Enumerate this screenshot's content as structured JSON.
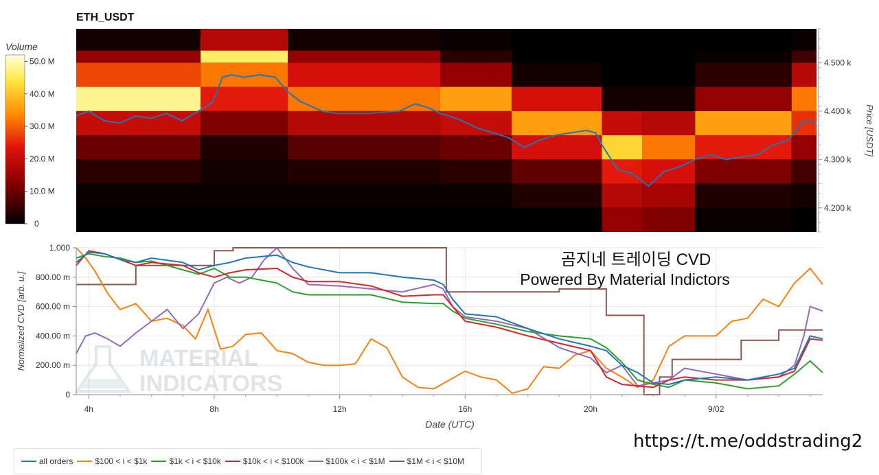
{
  "link_text": "https://t.me/oddstrading2",
  "colors": {
    "all_orders": "#1f77b4",
    "b100_1k": "#ff7f0e",
    "b1k_10k": "#2ca02c",
    "b10k_100k": "#d62728",
    "b100k_1m": "#9467bd",
    "b1m_10m": "#8c564b"
  },
  "chart_data": [
    {
      "type": "heatmap",
      "title": "ETH_USDT",
      "ylabel": "Price [USDT]",
      "colorbar_label": "Volume",
      "colorbar_ticks": [
        "0",
        "10.0 M",
        "20.0 M",
        "30.0 M",
        "40.0 M",
        "50.0 M"
      ],
      "colorbar_range": [
        0,
        52
      ],
      "y_ticks": [
        "4.200 k",
        "4.300 k",
        "4.400 k",
        "4.500 k"
      ],
      "y_tick_values": [
        4200,
        4300,
        4400,
        4500
      ],
      "ylim": [
        4150,
        4570
      ],
      "x_range_hours": [
        3.6,
        27.4
      ],
      "price_bins": [
        4175,
        4225,
        4275,
        4325,
        4375,
        4425,
        4475,
        4525,
        4550
      ],
      "volume_profile": [
        {
          "x_start": 3.6,
          "x_end": 7.6,
          "volumes": [
            0,
            1,
            4,
            10,
            20,
            48,
            28,
            14,
            2
          ]
        },
        {
          "x_start": 7.6,
          "x_end": 10.4,
          "volumes": [
            0,
            1,
            2,
            3,
            12,
            24,
            32,
            46,
            18
          ]
        },
        {
          "x_start": 10.4,
          "x_end": 15.3,
          "volumes": [
            0,
            1,
            3,
            8,
            18,
            32,
            22,
            14,
            2
          ]
        },
        {
          "x_start": 15.3,
          "x_end": 17.6,
          "volumes": [
            0,
            1,
            4,
            10,
            20,
            36,
            14,
            4,
            1
          ]
        },
        {
          "x_start": 17.6,
          "x_end": 20.5,
          "volumes": [
            0,
            3,
            9,
            22,
            36,
            22,
            2,
            0,
            0
          ]
        },
        {
          "x_start": 20.5,
          "x_end": 21.8,
          "volumes": [
            14,
            18,
            24,
            42,
            20,
            2,
            0,
            0,
            0
          ]
        },
        {
          "x_start": 21.8,
          "x_end": 23.5,
          "volumes": [
            12,
            16,
            22,
            32,
            18,
            2,
            0,
            0,
            0
          ]
        },
        {
          "x_start": 23.5,
          "x_end": 26.6,
          "volumes": [
            1,
            3,
            12,
            24,
            36,
            14,
            4,
            1,
            0
          ]
        },
        {
          "x_start": 26.6,
          "x_end": 27.4,
          "volumes": [
            0,
            2,
            6,
            14,
            26,
            32,
            18,
            6,
            1
          ]
        }
      ],
      "price_series": {
        "name": "price",
        "x": [
          3.6,
          4.0,
          4.5,
          5.0,
          5.5,
          6.0,
          6.5,
          7.0,
          7.4,
          7.8,
          8.0,
          8.3,
          8.6,
          9.0,
          9.5,
          10.0,
          10.4,
          10.8,
          11.5,
          12.0,
          13.0,
          14.0,
          14.5,
          15.0,
          15.3,
          15.6,
          16.0,
          16.5,
          17.0,
          17.5,
          18.0,
          18.5,
          19.0,
          19.5,
          20.0,
          20.3,
          20.5,
          21.0,
          21.5,
          22.0,
          22.5,
          23.0,
          23.5,
          24.0,
          24.5,
          25.0,
          25.5,
          26.0,
          26.5,
          27.0,
          27.4
        ],
        "y": [
          4390,
          4400,
          4380,
          4375,
          4390,
          4385,
          4395,
          4380,
          4395,
          4410,
          4420,
          4470,
          4475,
          4470,
          4475,
          4470,
          4440,
          4420,
          4400,
          4395,
          4395,
          4400,
          4415,
          4405,
          4395,
          4390,
          4380,
          4365,
          4355,
          4345,
          4325,
          4340,
          4350,
          4355,
          4360,
          4355,
          4330,
          4280,
          4270,
          4245,
          4275,
          4285,
          4300,
          4310,
          4300,
          4305,
          4310,
          4330,
          4340,
          4380,
          4375
        ]
      }
    },
    {
      "type": "line",
      "title": "곰지네 트레이딩 CVD",
      "subtitle": "Powered By Material Indictors",
      "xlabel": "Date (UTC)",
      "ylabel": "Normalized CVD [arb. u.]",
      "xlim": [
        3.6,
        27.4
      ],
      "ylim": [
        0,
        1
      ],
      "x_ticks": [
        "4h",
        "8h",
        "12h",
        "16h",
        "20h",
        "9/02"
      ],
      "x_tick_values": [
        4,
        8,
        12,
        16,
        20,
        24
      ],
      "y_ticks": [
        "0",
        "200.00 m",
        "400.00 m",
        "600.00 m",
        "800.00 m",
        "1.000"
      ],
      "y_tick_values": [
        0,
        0.2,
        0.4,
        0.6,
        0.8,
        1.0
      ],
      "grid": true,
      "legend_position": "bottom",
      "watermark_lines": [
        "MATERIAL",
        "INDICATORS"
      ],
      "series": [
        {
          "name": "all orders",
          "color_key": "all_orders",
          "step": false,
          "x": [
            3.6,
            4.0,
            4.5,
            5.0,
            5.5,
            6.0,
            7.0,
            7.5,
            8.0,
            8.5,
            9.0,
            10.0,
            10.5,
            11.0,
            12.0,
            13.0,
            14.0,
            15.0,
            15.3,
            15.6,
            16.0,
            16.5,
            17.0,
            18.0,
            19.0,
            20.0,
            20.5,
            21.0,
            21.5,
            22.0,
            22.5,
            23.0,
            24.0,
            25.0,
            26.0,
            26.5,
            27.0,
            27.4
          ],
          "y": [
            0.9,
            0.97,
            0.96,
            0.92,
            0.9,
            0.93,
            0.9,
            0.85,
            0.88,
            0.9,
            0.93,
            0.95,
            0.9,
            0.87,
            0.83,
            0.83,
            0.8,
            0.78,
            0.75,
            0.65,
            0.55,
            0.54,
            0.53,
            0.45,
            0.38,
            0.33,
            0.3,
            0.2,
            0.15,
            0.08,
            0.07,
            0.1,
            0.12,
            0.1,
            0.14,
            0.18,
            0.4,
            0.38
          ]
        },
        {
          "name": "$100 < i < $1k",
          "color_key": "b100_1k",
          "step": false,
          "x": [
            3.6,
            3.9,
            4.2,
            4.6,
            5.0,
            5.5,
            6.0,
            6.5,
            7.0,
            7.4,
            7.8,
            8.2,
            8.6,
            9.0,
            9.5,
            10.0,
            10.5,
            11.0,
            11.5,
            12.0,
            12.5,
            13.0,
            13.5,
            14.0,
            14.5,
            15.0,
            15.5,
            16.0,
            16.5,
            17.0,
            17.5,
            18.0,
            18.5,
            19.0,
            19.5,
            20.0,
            20.5,
            21.0,
            21.5,
            22.0,
            22.5,
            23.0,
            23.5,
            24.0,
            24.5,
            25.0,
            25.5,
            26.0,
            26.5,
            27.0,
            27.4
          ],
          "y": [
            1.0,
            0.93,
            0.84,
            0.69,
            0.58,
            0.62,
            0.5,
            0.52,
            0.47,
            0.38,
            0.58,
            0.31,
            0.33,
            0.41,
            0.42,
            0.3,
            0.28,
            0.22,
            0.2,
            0.2,
            0.21,
            0.38,
            0.32,
            0.12,
            0.05,
            0.04,
            0.1,
            0.16,
            0.12,
            0.1,
            0.01,
            0.04,
            0.19,
            0.18,
            0.27,
            0.3,
            0.18,
            0.12,
            0.05,
            0.1,
            0.33,
            0.4,
            0.4,
            0.4,
            0.5,
            0.52,
            0.65,
            0.6,
            0.76,
            0.86,
            0.75
          ]
        },
        {
          "name": "$1k < i < $10k",
          "color_key": "b1k_10k",
          "step": false,
          "x": [
            3.6,
            4.0,
            4.5,
            5.0,
            5.5,
            6.0,
            7.0,
            7.5,
            8.0,
            8.5,
            9.0,
            10.0,
            10.5,
            11.0,
            12.0,
            13.0,
            14.0,
            15.0,
            15.3,
            15.6,
            16.0,
            17.0,
            18.0,
            19.0,
            20.0,
            20.5,
            21.0,
            21.5,
            22.0,
            22.5,
            23.0,
            24.0,
            25.0,
            26.0,
            26.5,
            27.0,
            27.4
          ],
          "y": [
            0.93,
            0.96,
            0.94,
            0.93,
            0.9,
            0.91,
            0.85,
            0.82,
            0.86,
            0.8,
            0.8,
            0.76,
            0.7,
            0.68,
            0.68,
            0.68,
            0.63,
            0.62,
            0.62,
            0.57,
            0.52,
            0.48,
            0.43,
            0.4,
            0.38,
            0.32,
            0.22,
            0.1,
            0.07,
            0.05,
            0.1,
            0.08,
            0.04,
            0.06,
            0.14,
            0.23,
            0.15
          ]
        },
        {
          "name": "$10k < i < $100k",
          "color_key": "b10k_100k",
          "step": false,
          "x": [
            3.6,
            4.0,
            4.5,
            5.0,
            5.5,
            6.0,
            7.0,
            7.5,
            8.0,
            8.5,
            9.0,
            10.0,
            10.5,
            11.0,
            12.0,
            13.0,
            14.0,
            15.0,
            15.3,
            15.6,
            16.0,
            17.0,
            18.0,
            19.0,
            20.0,
            20.5,
            21.0,
            21.5,
            22.0,
            22.5,
            23.0,
            24.0,
            25.0,
            26.0,
            26.5,
            27.0,
            27.4
          ],
          "y": [
            0.88,
            0.98,
            0.96,
            0.92,
            0.88,
            0.9,
            0.88,
            0.83,
            0.8,
            0.83,
            0.85,
            0.86,
            0.8,
            0.77,
            0.77,
            0.74,
            0.67,
            0.68,
            0.68,
            0.6,
            0.5,
            0.46,
            0.4,
            0.35,
            0.3,
            0.12,
            0.07,
            0.06,
            0.05,
            0.1,
            0.12,
            0.1,
            0.1,
            0.12,
            0.16,
            0.38,
            0.37
          ]
        },
        {
          "name": "$100k < i < $1M",
          "color_key": "b100k_1m",
          "step": false,
          "x": [
            3.6,
            3.9,
            4.2,
            4.6,
            5.0,
            5.5,
            6.0,
            6.5,
            7.0,
            7.5,
            8.0,
            8.4,
            8.8,
            9.2,
            9.6,
            10.0,
            10.5,
            11.0,
            12.0,
            13.0,
            14.0,
            15.0,
            15.3,
            15.6,
            16.0,
            17.0,
            18.0,
            19.0,
            20.0,
            20.5,
            21.0,
            21.5,
            22.0,
            22.5,
            23.0,
            24.0,
            25.0,
            26.0,
            26.5,
            26.8,
            27.0,
            27.4
          ],
          "y": [
            0.28,
            0.4,
            0.42,
            0.38,
            0.33,
            0.42,
            0.5,
            0.58,
            0.45,
            0.55,
            0.76,
            0.8,
            0.76,
            0.8,
            0.92,
            1.0,
            0.86,
            0.75,
            0.74,
            0.72,
            0.7,
            0.75,
            0.72,
            0.6,
            0.53,
            0.5,
            0.45,
            0.32,
            0.25,
            0.15,
            0.2,
            0.06,
            0.08,
            0.1,
            0.18,
            0.14,
            0.1,
            0.12,
            0.2,
            0.4,
            0.6,
            0.57
          ]
        },
        {
          "name": "$1M < i < $10M",
          "color_key": "b1m_10m",
          "step": true,
          "x": [
            3.6,
            5.5,
            6.2,
            8.0,
            8.6,
            15.3,
            15.4,
            19.0,
            20.5,
            21.2,
            21.7,
            22.2,
            22.6,
            24.0,
            24.8,
            26.0,
            27.4
          ],
          "y": [
            0.75,
            0.88,
            0.88,
            0.98,
            1.0,
            1.0,
            0.7,
            0.72,
            0.54,
            0.54,
            0.0,
            0.12,
            0.24,
            0.24,
            0.37,
            0.44,
            0.44
          ]
        }
      ]
    }
  ]
}
